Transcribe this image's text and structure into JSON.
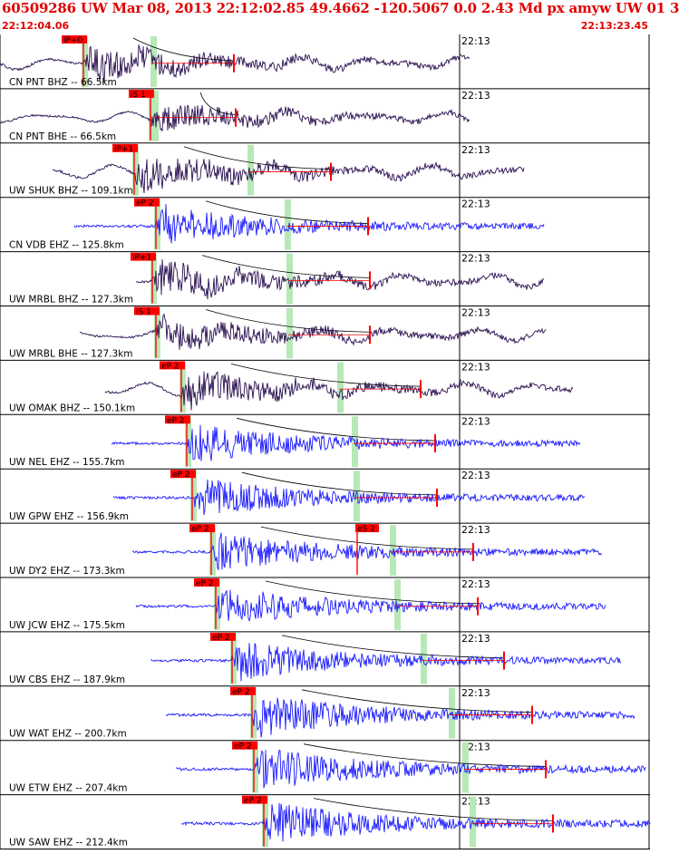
{
  "header": {
    "title": "60509286 UW Mar 08, 2013 22:12:02.85    49.4662 -120.5067  0.0 2.43 Md px amyw UW 01   3",
    "start_time": "22:12:04.06",
    "end_time": "22:13:23.45"
  },
  "minute_label": "22:13",
  "colors": {
    "broadband": "#2a1050",
    "short_period": "#1a1aff",
    "pick": "#ff0000",
    "pick_band": "#b8e8b8",
    "frame": "#000000"
  },
  "traces": [
    {
      "label": "CN PNT BHZ -- 66.5km",
      "pick": "iP+0",
      "type": "broadband"
    },
    {
      "label": "CN PNT BHE -- 66.5km",
      "pick": "iS 1",
      "type": "broadband"
    },
    {
      "label": "UW SHUK BHZ -- 109.1km",
      "pick": "iP+1",
      "type": "broadband"
    },
    {
      "label": "CN VDB EHZ -- 125.8km",
      "pick": "eP 2",
      "type": "short_period"
    },
    {
      "label": "UW MRBL BHZ -- 127.3km",
      "pick": "iP+1",
      "type": "broadband"
    },
    {
      "label": "UW MRBL BHE -- 127.3km",
      "pick": "iS 1",
      "type": "broadband"
    },
    {
      "label": "UW OMAK BHZ -- 150.1km",
      "pick": "eP 2",
      "type": "broadband"
    },
    {
      "label": "UW NEL EHZ -- 155.7km",
      "pick": "eP 2",
      "type": "short_period"
    },
    {
      "label": "UW GPW EHZ -- 156.9km",
      "pick": "eP 2",
      "type": "short_period"
    },
    {
      "label": "UW DY2 EHZ -- 173.3km",
      "pick": "eP 2",
      "pick2": "eS 2",
      "type": "short_period"
    },
    {
      "label": "UW JCW EHZ -- 175.5km",
      "pick": "eP 2",
      "type": "short_period"
    },
    {
      "label": "UW CBS EHZ -- 187.9km",
      "pick": "eP 2",
      "type": "short_period"
    },
    {
      "label": "UW WAT EHZ -- 200.7km",
      "pick": "eP 2",
      "type": "short_period"
    },
    {
      "label": "UW ETW EHZ -- 207.4km",
      "pick": "eP 2",
      "type": "short_period"
    },
    {
      "label": "UW SAW EHZ -- 212.4km",
      "pick": "eP 2",
      "type": "short_period"
    }
  ]
}
